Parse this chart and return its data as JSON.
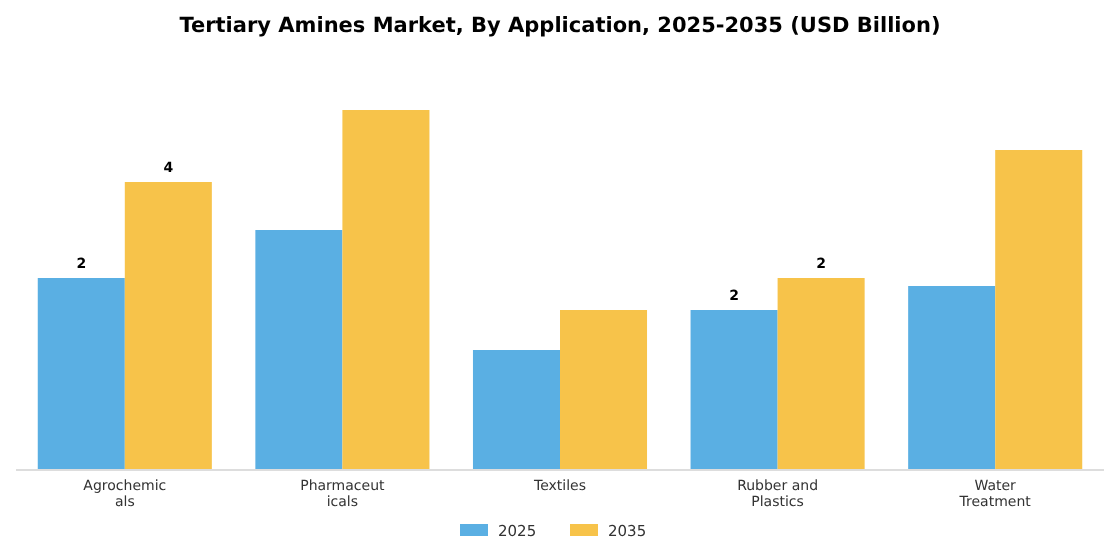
{
  "chart_data": {
    "type": "bar",
    "title": "Tertiary Amines Market, By Application, 2025-2035 (USD Billion)",
    "categories": [
      "Agrochemic\nals",
      "Pharmaceut\nicals",
      "Textiles",
      "Rubber and\nPlastics",
      "Water\nTreatment"
    ],
    "series": [
      {
        "name": "2025",
        "color": "#5aafe3",
        "values": [
          2.4,
          3.0,
          1.5,
          2.0,
          2.3
        ],
        "value_labels": [
          "2",
          null,
          null,
          "2",
          null
        ]
      },
      {
        "name": "2035",
        "color": "#f7c34a",
        "values": [
          3.6,
          4.5,
          2.0,
          2.4,
          4.0
        ],
        "value_labels": [
          "4",
          null,
          null,
          "2",
          null
        ]
      }
    ],
    "legend": "bottom"
  }
}
